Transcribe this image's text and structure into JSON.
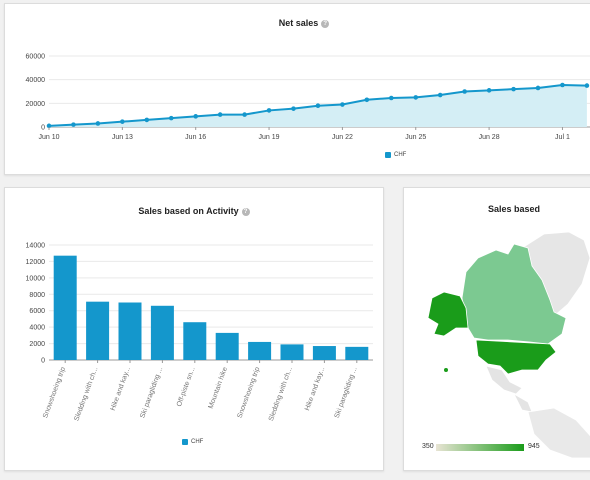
{
  "colors": {
    "series": "#1497cc",
    "area_fill": "#d4eef5",
    "map_high": "#1a9c1a",
    "map_low": "#e8e4d4"
  },
  "net_sales": {
    "title": "Net sales",
    "legend": "CHF",
    "chart_data": {
      "type": "area",
      "title": "Net sales",
      "x_ticks": [
        "Jun 10",
        "Jun 13",
        "Jun 16",
        "Jun 19",
        "Jun 22",
        "Jun 25",
        "Jun 28",
        "Jul 1"
      ],
      "y_ticks": [
        0,
        20000,
        40000,
        60000
      ],
      "ylim": [
        0,
        60000
      ],
      "grid": true,
      "legend_position": "bottom",
      "series": [
        {
          "name": "CHF",
          "x": [
            "Jun 10",
            "Jun 11",
            "Jun 12",
            "Jun 13",
            "Jun 14",
            "Jun 15",
            "Jun 16",
            "Jun 17",
            "Jun 18",
            "Jun 19",
            "Jun 20",
            "Jun 21",
            "Jun 22",
            "Jun 23",
            "Jun 24",
            "Jun 25",
            "Jun 26",
            "Jun 27",
            "Jun 28",
            "Jun 29",
            "Jun 30",
            "Jul 1",
            "Jul 2"
          ],
          "values": [
            1000,
            2000,
            3000,
            4500,
            6000,
            7500,
            9000,
            10500,
            10500,
            14000,
            15500,
            18000,
            19000,
            23000,
            24500,
            25000,
            27000,
            30000,
            31000,
            32000,
            33000,
            35500,
            35000
          ]
        }
      ]
    }
  },
  "activity": {
    "title": "Sales based on Activity",
    "legend": "CHF",
    "chart_data": {
      "type": "bar",
      "title": "Sales based on Activity",
      "categories": [
        "Snowshoeing trip",
        "Sledding with ch...",
        "Hike and kay...",
        "Ski paragliding ...",
        "Off-piste sn...",
        "Mountain hike",
        "Snowshoeing trip",
        "Sledding with ch...",
        "Hike and kay...",
        "Ski paragliding ..."
      ],
      "series": [
        {
          "name": "CHF",
          "values": [
            12700,
            7100,
            7000,
            6600,
            4600,
            3300,
            2200,
            1900,
            1700,
            1600
          ]
        }
      ],
      "y_ticks": [
        0,
        2000,
        4000,
        6000,
        8000,
        10000,
        12000,
        14000
      ],
      "ylim": [
        0,
        14000
      ],
      "grid": true,
      "legend_position": "bottom"
    }
  },
  "geo": {
    "title": "Sales based",
    "scale_min": "350",
    "scale_max": "945"
  }
}
